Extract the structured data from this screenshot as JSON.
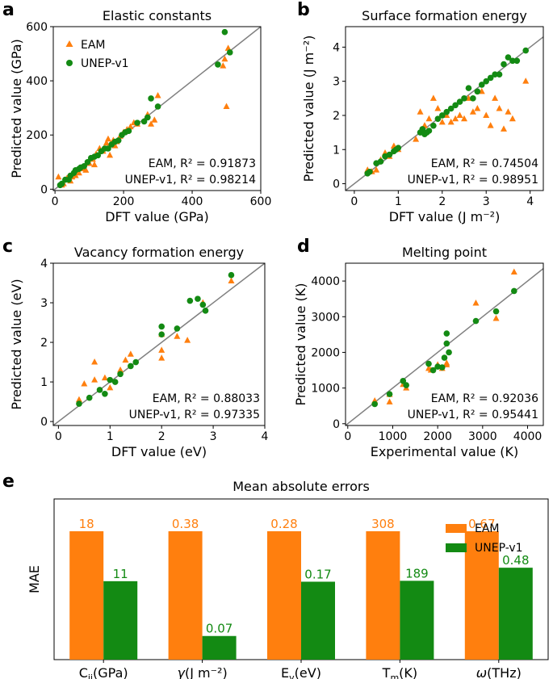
{
  "colors": {
    "eam": "#ff7f0e",
    "unep": "#138a13",
    "diag": "#808080"
  },
  "panels": [
    {
      "id": "a",
      "chart_data": {
        "type": "scatter",
        "title": "Elastic constants",
        "xlabel": "DFT value (GPa)",
        "ylabel": "Predicted value (GPa)",
        "xlim": [
          -5,
          600
        ],
        "ylim": [
          -5,
          600
        ],
        "xticks": [
          "0",
          "200",
          "400",
          "600"
        ],
        "yticks": [
          "0",
          "200",
          "400",
          "600"
        ],
        "legend": [
          "EAM",
          "UNEP-v1"
        ],
        "ann_eam": "EAM, R² = 0.91873",
        "ann_unep": "UNEP-v1, R² = 0.98214",
        "series": [
          {
            "name": "EAM",
            "marker": "triangle",
            "x": [
              10,
              20,
              25,
              35,
              45,
              50,
              60,
              70,
              80,
              90,
              100,
              110,
              115,
              120,
              130,
              140,
              150,
              155,
              160,
              170,
              175,
              180,
              190,
              200,
              210,
              220,
              230,
              240,
              270,
              280,
              290,
              300,
              490,
              495,
              500,
              505
            ],
            "y": [
              45,
              15,
              20,
              40,
              30,
              45,
              50,
              60,
              75,
              70,
              95,
              110,
              90,
              130,
              150,
              140,
              170,
              185,
              125,
              180,
              160,
              175,
              195,
              210,
              220,
              230,
              245,
              240,
              275,
              240,
              255,
              345,
              455,
              480,
              305,
              520
            ]
          },
          {
            "name": "UNEP-v1",
            "marker": "circle",
            "x": [
              15,
              20,
              30,
              40,
              45,
              55,
              60,
              70,
              75,
              85,
              95,
              105,
              115,
              125,
              135,
              145,
              155,
              165,
              175,
              185,
              195,
              205,
              215,
              240,
              260,
              270,
              280,
              300,
              475,
              495,
              510
            ],
            "y": [
              15,
              20,
              35,
              35,
              50,
              60,
              70,
              75,
              80,
              85,
              100,
              115,
              120,
              125,
              140,
              150,
              150,
              165,
              175,
              180,
              200,
              210,
              215,
              245,
              250,
              265,
              335,
              305,
              460,
              580,
              505
            ]
          }
        ]
      }
    },
    {
      "id": "b",
      "chart_data": {
        "type": "scatter",
        "title": "Surface formation energy",
        "xlabel": "DFT value (J m⁻²)",
        "ylabel": "Predicted value (J m⁻²)",
        "xlim": [
          -0.2,
          4.3
        ],
        "ylim": [
          -0.2,
          4.6
        ],
        "xticks": [
          "0",
          "1",
          "2",
          "3",
          "4"
        ],
        "yticks": [
          "0",
          "1",
          "2",
          "3",
          "4"
        ],
        "ann_eam": "EAM, R² = 0.74504",
        "ann_unep": "UNEP-v1, R² = 0.98951",
        "series": [
          {
            "name": "EAM",
            "marker": "triangle",
            "x": [
              0.3,
              0.4,
              0.5,
              0.6,
              0.7,
              0.8,
              0.9,
              1.0,
              1.4,
              1.5,
              1.55,
              1.6,
              1.7,
              1.8,
              1.9,
              2.0,
              2.1,
              2.2,
              2.3,
              2.4,
              2.5,
              2.6,
              2.7,
              2.8,
              2.9,
              3.0,
              3.1,
              3.2,
              3.3,
              3.4,
              3.5,
              3.6,
              3.9
            ],
            "y": [
              0.4,
              0.35,
              0.4,
              0.7,
              0.9,
              0.8,
              1.1,
              1.0,
              1.3,
              2.1,
              1.5,
              1.7,
              1.9,
              2.5,
              2.2,
              1.8,
              2.0,
              1.8,
              1.9,
              2.0,
              1.9,
              2.5,
              2.1,
              2.2,
              2.7,
              2.0,
              1.7,
              2.5,
              2.2,
              1.6,
              2.1,
              1.9,
              3.0
            ]
          },
          {
            "name": "UNEP-v1",
            "marker": "circle",
            "x": [
              0.3,
              0.35,
              0.5,
              0.6,
              0.7,
              0.8,
              0.9,
              0.95,
              1.0,
              1.5,
              1.55,
              1.6,
              1.65,
              1.7,
              1.8,
              1.9,
              2.0,
              2.1,
              2.2,
              2.3,
              2.4,
              2.5,
              2.6,
              2.7,
              2.8,
              2.9,
              3.0,
              3.1,
              3.2,
              3.3,
              3.4,
              3.5,
              3.6,
              3.7,
              3.9
            ],
            "y": [
              0.3,
              0.35,
              0.6,
              0.65,
              0.8,
              0.85,
              0.95,
              1.0,
              1.05,
              1.5,
              1.6,
              1.45,
              1.5,
              1.55,
              1.7,
              1.9,
              2.0,
              2.1,
              2.2,
              2.3,
              2.4,
              2.5,
              2.8,
              2.5,
              2.7,
              2.9,
              3.0,
              3.1,
              3.2,
              3.2,
              3.5,
              3.7,
              3.6,
              3.6,
              3.9
            ]
          }
        ]
      }
    },
    {
      "id": "c",
      "chart_data": {
        "type": "scatter",
        "title": "Vacancy formation energy",
        "xlabel": "DFT value (eV)",
        "ylabel": "Predicted value (eV)",
        "xlim": [
          -0.1,
          4
        ],
        "ylim": [
          -0.1,
          4
        ],
        "xticks": [
          "0",
          "1",
          "2",
          "3",
          "4"
        ],
        "yticks": [
          "0",
          "1",
          "2",
          "3",
          "4"
        ],
        "ann_eam": "EAM, R² = 0.88033",
        "ann_unep": "UNEP-v1, R² = 0.97335",
        "series": [
          {
            "name": "EAM",
            "marker": "triangle",
            "x": [
              0.4,
              0.5,
              0.7,
              0.7,
              0.9,
              1.0,
              1.2,
              1.3,
              1.4,
              2.0,
              2.0,
              2.0,
              2.3,
              2.5,
              2.8,
              3.35
            ],
            "y": [
              0.55,
              0.95,
              1.05,
              1.5,
              1.1,
              0.85,
              1.3,
              1.55,
              1.7,
              1.6,
              1.8,
              2.2,
              2.15,
              2.05,
              3.0,
              3.55
            ]
          },
          {
            "name": "UNEP-v1",
            "marker": "circle",
            "x": [
              0.4,
              0.6,
              0.8,
              0.9,
              1.0,
              1.1,
              1.2,
              1.4,
              1.5,
              2.0,
              2.0,
              2.3,
              2.55,
              2.7,
              2.8,
              2.85,
              3.35
            ],
            "y": [
              0.45,
              0.6,
              0.8,
              0.7,
              1.05,
              1.0,
              1.2,
              1.4,
              1.5,
              2.4,
              2.2,
              2.35,
              3.05,
              3.1,
              2.95,
              2.8,
              3.7
            ]
          }
        ]
      }
    },
    {
      "id": "d",
      "chart_data": {
        "type": "scatter",
        "title": "Melting point",
        "xlabel": "Experimental value (K)",
        "ylabel": "Predicted value (K)",
        "xlim": [
          -50,
          4350
        ],
        "ylim": [
          -50,
          4500
        ],
        "xticks": [
          "0",
          "1000",
          "2000",
          "3000",
          "4000"
        ],
        "yticks": [
          "0",
          "1000",
          "2000",
          "3000",
          "4000"
        ],
        "ann_eam": "EAM, R² = 0.92036",
        "ann_unep": "UNEP-v1, R² = 0.95441",
        "series": [
          {
            "name": "EAM",
            "marker": "triangle",
            "x": [
              600,
              930,
              930,
              1230,
              1300,
              1800,
              1850,
              2000,
              2100,
              2200,
              2200,
              2850,
              3300,
              3700
            ],
            "y": [
              640,
              610,
              820,
              1100,
              1000,
              1550,
              1500,
              1650,
              1550,
              1650,
              1700,
              3380,
              2950,
              4250
            ]
          },
          {
            "name": "UNEP-v1",
            "marker": "circle",
            "x": [
              600,
              930,
              1230,
              1300,
              1800,
              1900,
              2000,
              2100,
              2150,
              2200,
              2200,
              2250,
              2850,
              3300,
              3700
            ],
            "y": [
              550,
              830,
              1200,
              1080,
              1680,
              1500,
              1600,
              1580,
              1850,
              2530,
              2250,
              2000,
              2880,
              3150,
              3720
            ]
          }
        ]
      }
    },
    {
      "id": "e",
      "chart_data": {
        "type": "bar",
        "title": "Mean absolute errors",
        "ylabel": "MAE",
        "categories": [
          "C_ij(GPa)",
          "γ(J m⁻²)",
          "E_v(eV)",
          "T_m(K)",
          "ω(THz)"
        ],
        "series": [
          {
            "name": "EAM",
            "labels": [
              "18",
              "0.38",
              "0.28",
              "308",
              "0.67"
            ],
            "values": [
              18,
              0.38,
              0.28,
              308,
              0.67
            ],
            "relative": [
              1,
              1,
              1,
              1,
              1
            ]
          },
          {
            "name": "UNEP-v1",
            "labels": [
              "11",
              "0.07",
              "0.17",
              "189",
              "0.48"
            ],
            "values": [
              11,
              0.07,
              0.17,
              189,
              0.48
            ],
            "relative": [
              0.611,
              0.184,
              0.607,
              0.614,
              0.716
            ]
          }
        ]
      }
    }
  ]
}
